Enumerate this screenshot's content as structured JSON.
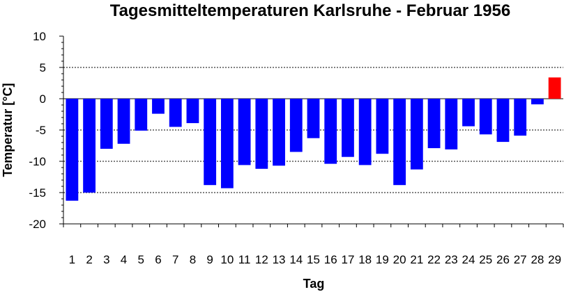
{
  "chart_data": {
    "type": "bar",
    "title": "Tagesmitteltemperaturen Karlsruhe - Februar 1956",
    "xlabel": "Tag",
    "ylabel": "Temperatur [°C]",
    "ylim": [
      -20,
      10
    ],
    "yticks": [
      -20,
      -15,
      -10,
      -5,
      0,
      5,
      10
    ],
    "grid": "dashed horizontal at major y ticks",
    "categories": [
      "1",
      "2",
      "3",
      "4",
      "5",
      "6",
      "7",
      "8",
      "9",
      "10",
      "11",
      "12",
      "13",
      "14",
      "15",
      "16",
      "17",
      "18",
      "19",
      "20",
      "21",
      "22",
      "23",
      "24",
      "25",
      "26",
      "27",
      "28",
      "29"
    ],
    "values": [
      -16.3,
      -15.0,
      -8.0,
      -7.2,
      -5.1,
      -2.4,
      -4.5,
      -3.9,
      -13.8,
      -14.3,
      -10.6,
      -11.2,
      -10.7,
      -8.5,
      -6.3,
      -10.4,
      -9.3,
      -10.6,
      -8.8,
      -13.8,
      -11.3,
      -7.9,
      -8.1,
      -4.4,
      -5.7,
      -6.9,
      -5.9,
      -0.9,
      3.4
    ],
    "colors": {
      "negative": "#0000ff",
      "positive": "#ff0000",
      "axis": "#000000",
      "grid": "#000000"
    }
  }
}
